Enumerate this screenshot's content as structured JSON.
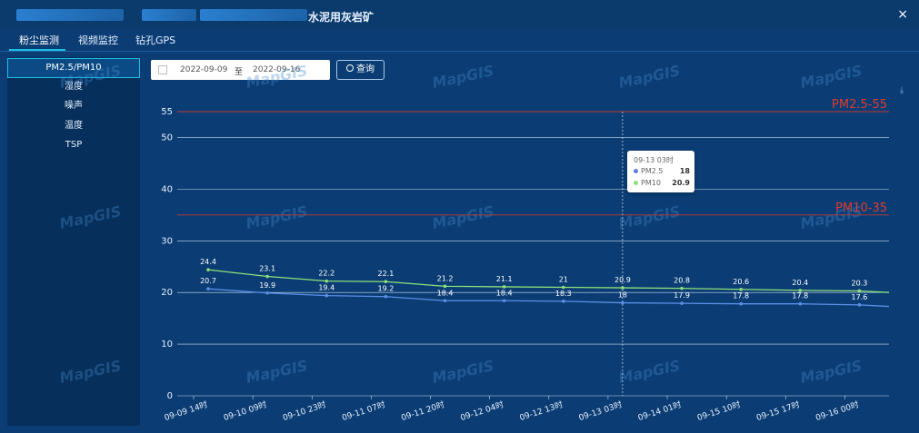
{
  "window": {
    "title_suffix": "水泥用灰岩矿",
    "close_glyph": "×"
  },
  "tabs": [
    {
      "label": "粉尘监测"
    },
    {
      "label": "视频监控"
    },
    {
      "label": "钻孔GPS"
    }
  ],
  "sidebar": {
    "items": [
      {
        "label": "PM2.5/PM10"
      },
      {
        "label": "湿度"
      },
      {
        "label": "噪声"
      },
      {
        "label": "温度"
      },
      {
        "label": "TSP"
      }
    ]
  },
  "filter": {
    "start_date": "2022-09-09",
    "separator": "至",
    "end_date": "2022-09-16",
    "query_label": "查询"
  },
  "watermark": "MapGIS",
  "tooltip": {
    "title": "09-13 03时",
    "rows": [
      {
        "name": "PM2.5",
        "value": "18",
        "color": "#5b7fe0"
      },
      {
        "name": "PM10",
        "value": "20.9",
        "color": "#8ee07a"
      }
    ]
  },
  "chart_data": {
    "type": "line",
    "x": [
      "09-09 14时",
      "09-10 09时",
      "09-10 23时",
      "09-11 07时",
      "09-11 20时",
      "09-12 04时",
      "09-12 13时",
      "09-13 03时",
      "09-14 01时",
      "09-15 10时",
      "09-15 17时",
      "09-16 00时"
    ],
    "series": [
      {
        "name": "PM10",
        "color": "#8ee07a",
        "values": [
          24.4,
          23.1,
          22.2,
          22.1,
          21.2,
          21.1,
          21,
          20.9,
          20.8,
          20.6,
          20.4,
          20.3
        ]
      },
      {
        "name": "PM2.5",
        "color": "#5b8fe6",
        "values": [
          20.7,
          19.9,
          19.4,
          19.2,
          18.4,
          18.4,
          18.3,
          18,
          17.9,
          17.8,
          17.8,
          17.6
        ]
      }
    ],
    "ylim": [
      0,
      55
    ],
    "yticks": [
      0,
      10,
      20,
      30,
      40,
      50,
      55
    ],
    "threshold_lines": [
      {
        "label": "PM2.5-55",
        "value": 55,
        "color": "#c0392b"
      },
      {
        "label": "PM10-35",
        "value": 35,
        "color": "#c0392b"
      }
    ],
    "grid": true,
    "hover_index": 7
  }
}
